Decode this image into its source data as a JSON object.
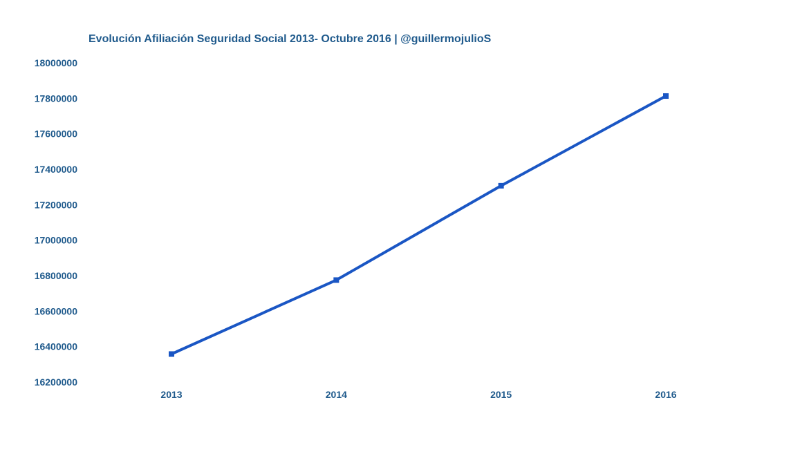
{
  "chart_data": {
    "type": "line",
    "title": "Evolución Afiliación Seguridad Social 2013- Octubre 2016 | @guillermojulioS",
    "xlabel": "",
    "ylabel": "",
    "categories": [
      "2013",
      "2014",
      "2015",
      "2016"
    ],
    "series": [
      {
        "values": [
          16358000,
          16775000,
          17307000,
          17813000
        ]
      }
    ],
    "ylim": [
      16200000,
      18000000
    ],
    "yticks": [
      "16200000",
      "16400000",
      "16600000",
      "16800000",
      "17000000",
      "17200000",
      "17400000",
      "17600000",
      "17800000",
      "18000000"
    ],
    "grid": false,
    "legend": "none",
    "colors": {
      "line": "#1a56c4",
      "text": "#1f5a8c"
    }
  }
}
